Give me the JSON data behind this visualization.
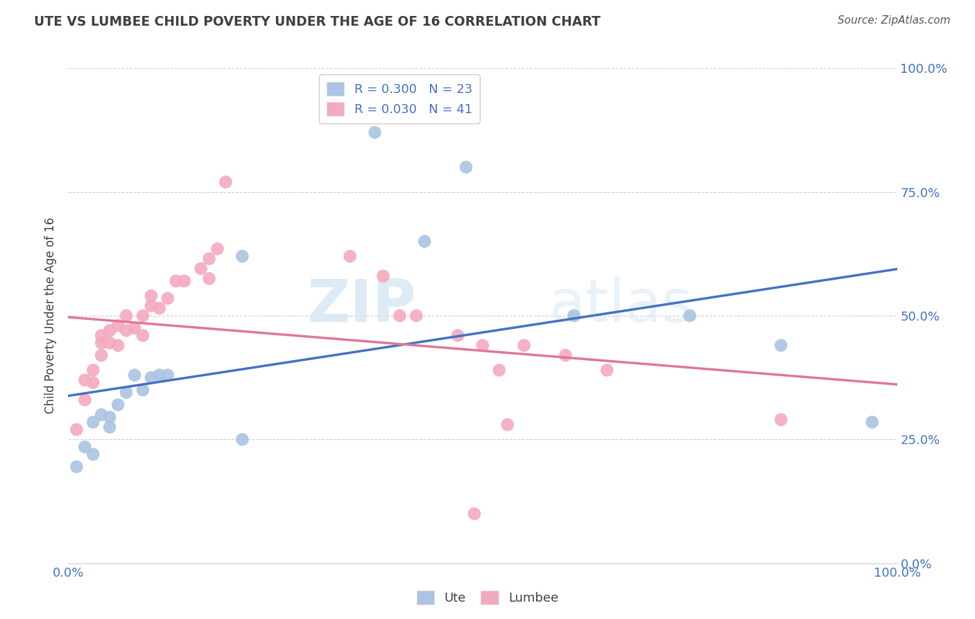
{
  "title": "UTE VS LUMBEE CHILD POVERTY UNDER THE AGE OF 16 CORRELATION CHART",
  "source": "Source: ZipAtlas.com",
  "ylabel": "Child Poverty Under the Age of 16",
  "watermark_zip": "ZIP",
  "watermark_atlas": "atlas",
  "xlim": [
    0.0,
    1.0
  ],
  "ylim": [
    0.0,
    1.0
  ],
  "ytick_labels": [
    "0.0%",
    "25.0%",
    "50.0%",
    "75.0%",
    "100.0%"
  ],
  "ytick_vals": [
    0.0,
    0.25,
    0.5,
    0.75,
    1.0
  ],
  "legend_ute_R": "R = 0.300",
  "legend_ute_N": "N = 23",
  "legend_lumbee_R": "R = 0.030",
  "legend_lumbee_N": "N = 41",
  "blue_color": "#aac4e2",
  "pink_color": "#f4aabe",
  "blue_line_color": "#4472C4",
  "pink_line_color": "#e07898",
  "title_color": "#404040",
  "tick_label_color": "#4472C4",
  "ute_points": [
    [
      0.01,
      0.195
    ],
    [
      0.02,
      0.235
    ],
    [
      0.03,
      0.22
    ],
    [
      0.03,
      0.285
    ],
    [
      0.04,
      0.3
    ],
    [
      0.05,
      0.275
    ],
    [
      0.05,
      0.295
    ],
    [
      0.06,
      0.32
    ],
    [
      0.07,
      0.345
    ],
    [
      0.08,
      0.38
    ],
    [
      0.09,
      0.35
    ],
    [
      0.1,
      0.375
    ],
    [
      0.11,
      0.38
    ],
    [
      0.12,
      0.38
    ],
    [
      0.21,
      0.62
    ],
    [
      0.21,
      0.25
    ],
    [
      0.37,
      0.87
    ],
    [
      0.48,
      0.8
    ],
    [
      0.43,
      0.65
    ],
    [
      0.61,
      0.5
    ],
    [
      0.75,
      0.5
    ],
    [
      0.86,
      0.44
    ],
    [
      0.97,
      0.285
    ]
  ],
  "lumbee_points": [
    [
      0.01,
      0.27
    ],
    [
      0.02,
      0.33
    ],
    [
      0.02,
      0.37
    ],
    [
      0.03,
      0.365
    ],
    [
      0.03,
      0.39
    ],
    [
      0.04,
      0.42
    ],
    [
      0.04,
      0.445
    ],
    [
      0.04,
      0.46
    ],
    [
      0.05,
      0.445
    ],
    [
      0.05,
      0.47
    ],
    [
      0.06,
      0.44
    ],
    [
      0.06,
      0.48
    ],
    [
      0.07,
      0.47
    ],
    [
      0.07,
      0.5
    ],
    [
      0.08,
      0.475
    ],
    [
      0.09,
      0.46
    ],
    [
      0.09,
      0.5
    ],
    [
      0.1,
      0.52
    ],
    [
      0.1,
      0.54
    ],
    [
      0.11,
      0.515
    ],
    [
      0.12,
      0.535
    ],
    [
      0.13,
      0.57
    ],
    [
      0.14,
      0.57
    ],
    [
      0.16,
      0.595
    ],
    [
      0.17,
      0.575
    ],
    [
      0.17,
      0.615
    ],
    [
      0.18,
      0.635
    ],
    [
      0.19,
      0.77
    ],
    [
      0.34,
      0.62
    ],
    [
      0.38,
      0.58
    ],
    [
      0.4,
      0.5
    ],
    [
      0.42,
      0.5
    ],
    [
      0.47,
      0.46
    ],
    [
      0.5,
      0.44
    ],
    [
      0.52,
      0.39
    ],
    [
      0.53,
      0.28
    ],
    [
      0.55,
      0.44
    ],
    [
      0.6,
      0.42
    ],
    [
      0.65,
      0.39
    ],
    [
      0.86,
      0.29
    ],
    [
      0.49,
      0.1
    ]
  ],
  "background_color": "#ffffff",
  "grid_color": "#cccccc"
}
